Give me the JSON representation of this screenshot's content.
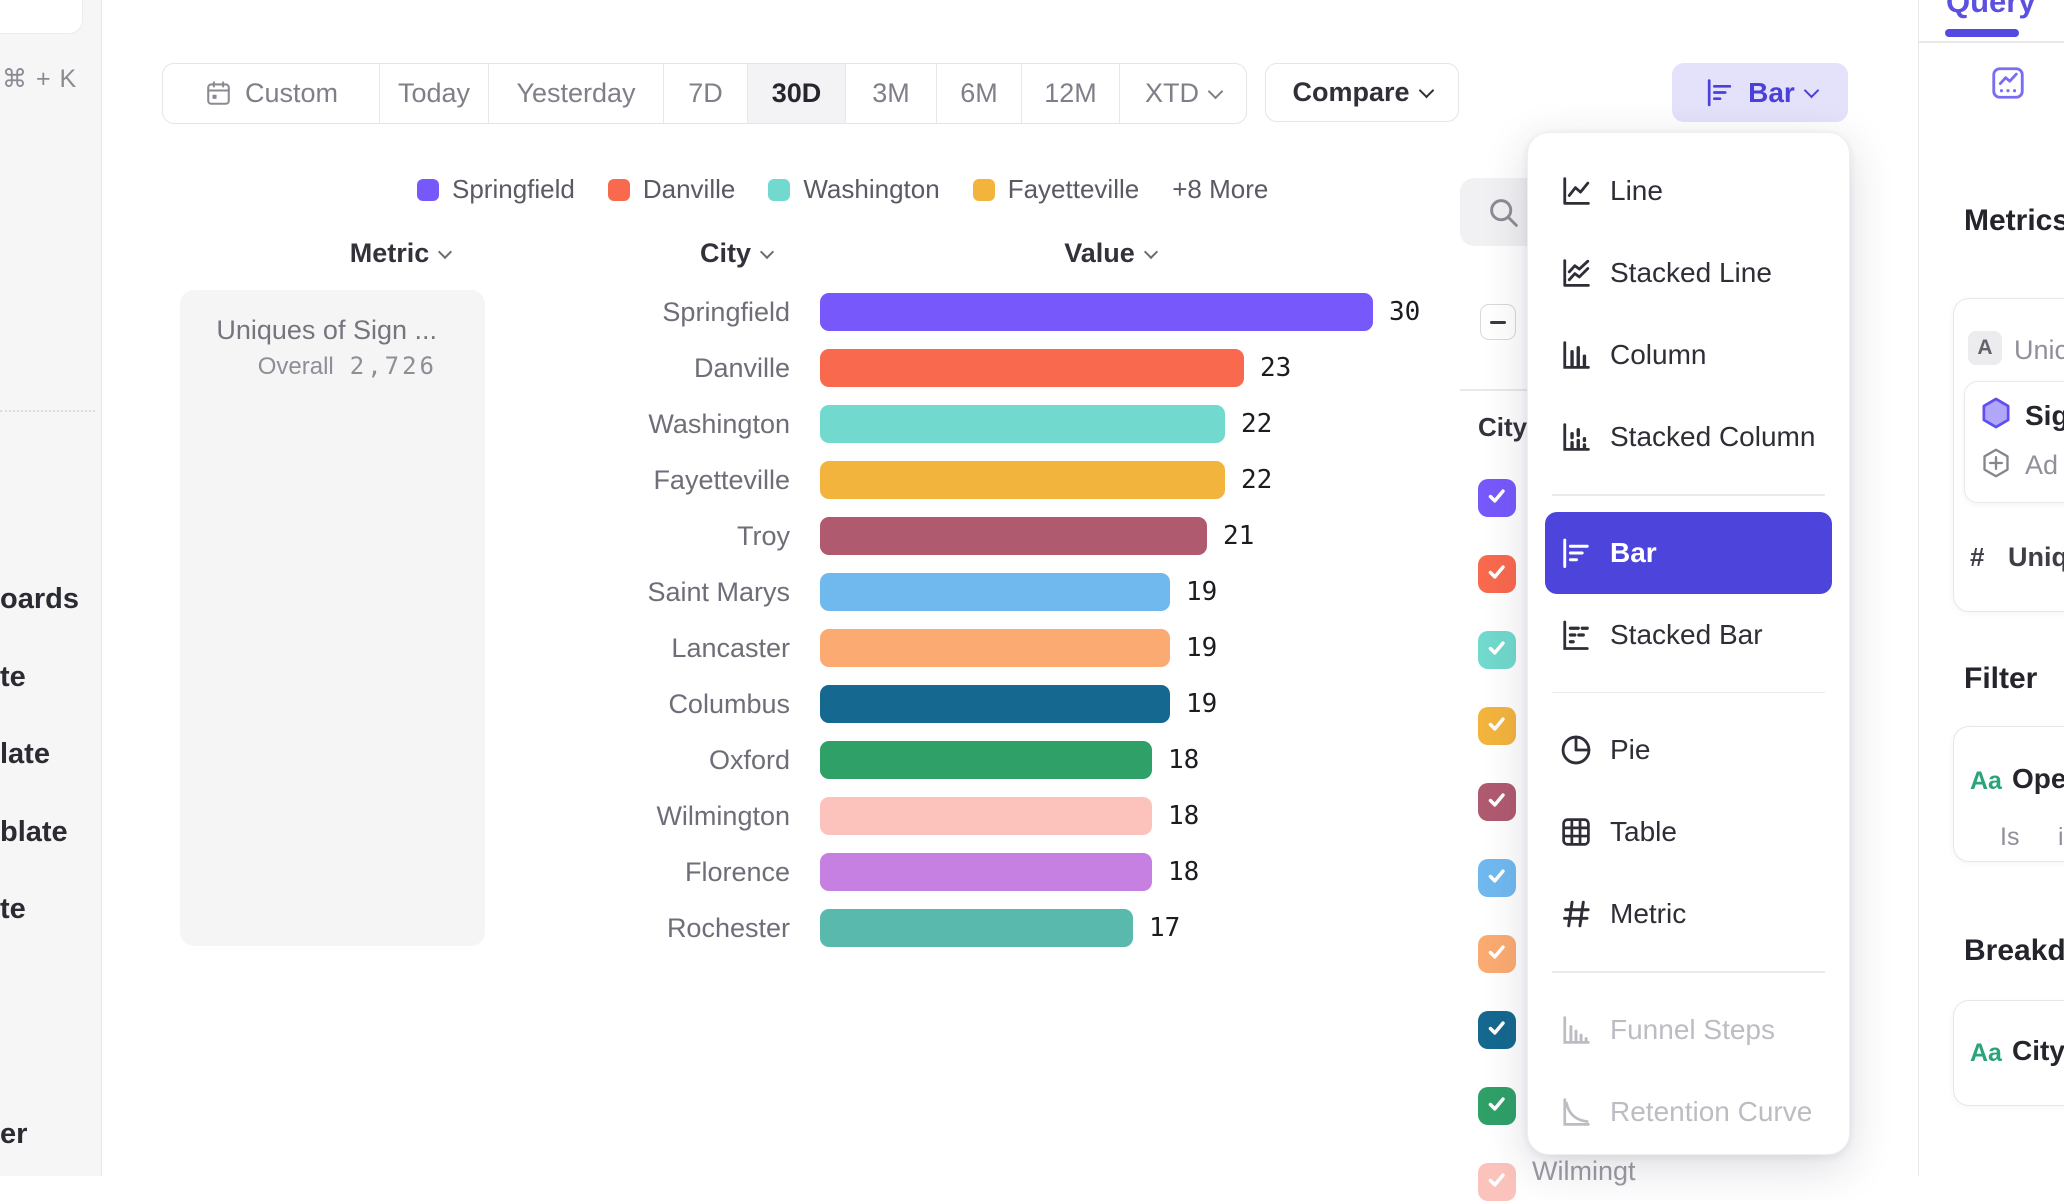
{
  "colors": {
    "accent": "#4D44DC",
    "accent_light_bg": "#E4E1FB",
    "accent_text": "#4B40D8",
    "selected_segment_bg": "#F3F3F5"
  },
  "sidebar": {
    "shortcut_hint": "⌘ + K",
    "truncated_items": [
      "oards",
      "te",
      "late",
      "blate",
      "te",
      "er"
    ]
  },
  "toolbar": {
    "date_ranges": [
      {
        "label": "Custom",
        "icon": "calendar-icon"
      },
      {
        "label": "Today"
      },
      {
        "label": "Yesterday"
      },
      {
        "label": "7D"
      },
      {
        "label": "30D"
      },
      {
        "label": "3M"
      },
      {
        "label": "6M"
      },
      {
        "label": "12M"
      },
      {
        "label": "XTD",
        "chevron": true
      }
    ],
    "selected_range": "30D",
    "compare_label": "Compare",
    "chart_type_label": "Bar"
  },
  "legend": {
    "items": [
      {
        "label": "Springfield",
        "color": "#7759FB"
      },
      {
        "label": "Danville",
        "color": "#F9694E"
      },
      {
        "label": "Washington",
        "color": "#71D9CD"
      },
      {
        "label": "Fayetteville",
        "color": "#F3B43E"
      }
    ],
    "more_label": "+8 More"
  },
  "table": {
    "headers": [
      "Metric",
      "City",
      "Value"
    ]
  },
  "metric_card": {
    "title": "Uniques of Sign ...",
    "overall_label": "Overall",
    "overall_value": "2,726"
  },
  "chart_data": {
    "type": "bar",
    "orientation": "horizontal",
    "title": "Uniques of Sign ...",
    "overall_total": "2,726",
    "categories": [
      "Springfield",
      "Danville",
      "Washington",
      "Fayetteville",
      "Troy",
      "Saint Marys",
      "Lancaster",
      "Columbus",
      "Oxford",
      "Wilmington",
      "Florence",
      "Rochester"
    ],
    "values": [
      30,
      23,
      22,
      22,
      21,
      19,
      19,
      19,
      18,
      18,
      18,
      17
    ],
    "colors": [
      "#7759FB",
      "#F9694E",
      "#71D9CD",
      "#F3B43E",
      "#B05A70",
      "#70B9EF",
      "#FBAB71",
      "#15688F",
      "#30A069",
      "#FCC3BC",
      "#C680E2",
      "#58B9AC"
    ],
    "xlim": [
      0,
      30
    ],
    "grid": false,
    "legend_position": "top"
  },
  "breakdown_panel": {
    "group_header": "City",
    "visible_checkbox_count": 10,
    "partial_row_label": "Wilmingt"
  },
  "chart_menu": {
    "sections": [
      [
        {
          "label": "Line",
          "icon": "line-chart-icon"
        },
        {
          "label": "Stacked Line",
          "icon": "stacked-line-chart-icon"
        },
        {
          "label": "Column",
          "icon": "column-chart-icon"
        },
        {
          "label": "Stacked Column",
          "icon": "stacked-column-chart-icon"
        }
      ],
      [
        {
          "label": "Bar",
          "icon": "bar-chart-icon",
          "selected": true
        },
        {
          "label": "Stacked Bar",
          "icon": "stacked-bar-chart-icon"
        }
      ],
      [
        {
          "label": "Pie",
          "icon": "pie-chart-icon"
        },
        {
          "label": "Table",
          "icon": "table-icon"
        },
        {
          "label": "Metric",
          "icon": "metric-hash-icon"
        }
      ],
      [
        {
          "label": "Funnel Steps",
          "icon": "funnel-steps-icon",
          "disabled": true
        },
        {
          "label": "Retention Curve",
          "icon": "retention-curve-icon",
          "disabled": true
        }
      ]
    ]
  },
  "query_panel": {
    "tab_label": "Query",
    "metrics_heading": "Metrics",
    "metric_letter_badge": "A",
    "metric_name_truncated": "Unic",
    "event_name_truncated": "Sig",
    "add_label_truncated": "Ad",
    "aggregate_prefix": "#",
    "aggregate_row_truncated": "Uniqu",
    "filter_heading": "Filter",
    "property_type_badge": "Aa",
    "filter_property_truncated": "Ope",
    "filter_operator": "Is",
    "filter_value_truncated": "i",
    "breakdown_heading_truncated": "Breakdo",
    "breakdown_property": "City"
  }
}
